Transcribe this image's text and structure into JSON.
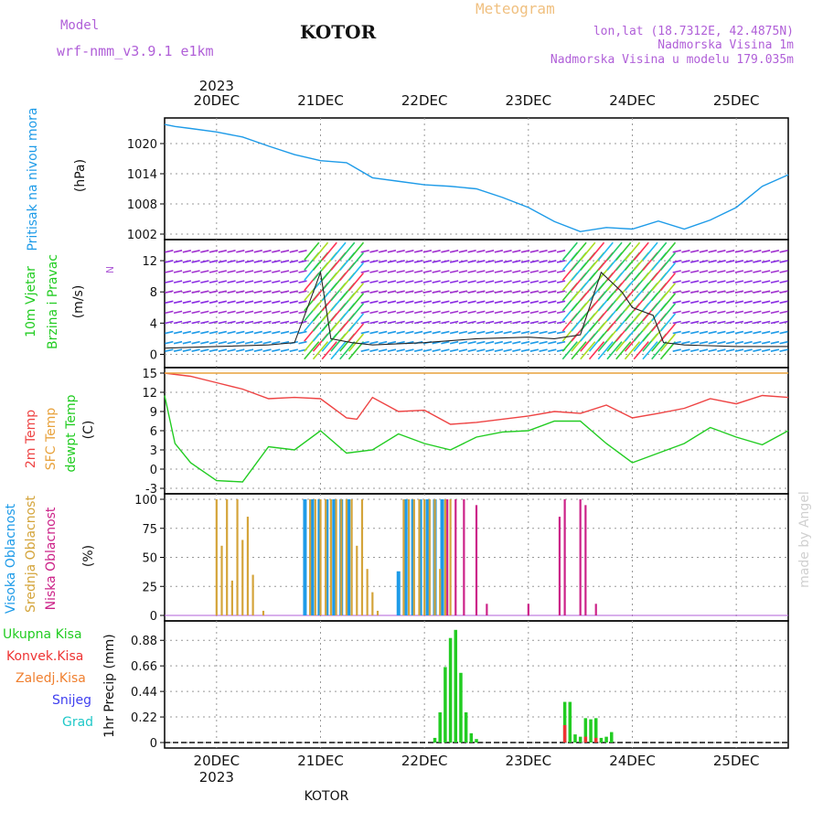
{
  "header": {
    "model_label": "Model",
    "model_name": "wrf-nmm_v3.9.1 e1km",
    "station": "KOTOR",
    "meteogram": "Meteogram",
    "lonlat": "lon,lat (18.7312E, 42.4875N)",
    "elevation": "Nadmorska Visina 1m",
    "model_elevation": "Nadmorska Visina u modelu 179.035m",
    "year": "2023",
    "footer_station": "KOTOR",
    "credit": "made by Angel"
  },
  "colors": {
    "pressure": "#1e9be8",
    "temp2m": "#ee4444",
    "sfc": "#e8a23c",
    "dewpt": "#22cc22",
    "high_cloud": "#1e9be8",
    "mid_cloud": "#d4a43a",
    "low_cloud": "#cc2288",
    "total_precip": "#22cc22",
    "conv_precip": "#ee3333"
  },
  "x_axis": {
    "day_labels": [
      "20DEC",
      "21DEC",
      "22DEC",
      "23DEC",
      "24DEC",
      "25DEC"
    ],
    "start": "2023-12-19 12:00",
    "end": "2023-12-25 12:00"
  },
  "chart_data": [
    {
      "type": "line",
      "name": "pressure",
      "ylabel_1": "Pritisak na nivou mora",
      "ylabel_2": "(hPa)",
      "ylim": [
        1002,
        1024
      ],
      "yticks": [
        1002,
        1008,
        1014,
        1020
      ],
      "x": [
        0,
        0.1,
        0.25,
        0.5,
        0.75,
        1.0,
        1.25,
        1.5,
        1.75,
        2.0,
        2.25,
        2.5,
        2.75,
        3.0,
        3.25,
        3.5,
        3.75,
        4.0,
        4.25,
        4.5,
        4.75,
        5.0,
        5.25,
        5.5,
        5.75,
        6.0
      ],
      "y": [
        1023.8,
        1023.4,
        1023,
        1022.3,
        1021.3,
        1019.5,
        1017.8,
        1016.6,
        1016.2,
        1013.2,
        1012.5,
        1011.8,
        1011.5,
        1011,
        1009.3,
        1007.3,
        1004.5,
        1002.5,
        1003.3,
        1003,
        1004.6,
        1003,
        1004.8,
        1007.3,
        1011.5,
        1013.8
      ]
    },
    {
      "type": "line",
      "name": "wind",
      "ylabel_1": "10m Vjetar",
      "ylabel_2": "Brzina i Pravac",
      "ylabel_3": "(m/s)",
      "compass": "N",
      "ylim": [
        -1,
        14
      ],
      "yticks": [
        0,
        4,
        8,
        12
      ],
      "x": [
        0,
        0.5,
        1.0,
        1.25,
        1.5,
        1.6,
        1.8,
        2.0,
        2.5,
        3.0,
        3.5,
        3.75,
        4.0,
        4.2,
        4.4,
        4.5,
        4.7,
        4.8,
        5.0,
        5.5,
        6.0
      ],
      "y": [
        0.8,
        1.0,
        1.2,
        1.5,
        10.5,
        2.0,
        1.5,
        1.2,
        1.5,
        2.0,
        2.2,
        2.0,
        2.5,
        10.5,
        8.0,
        6.0,
        5.0,
        1.5,
        1.2,
        1.0,
        1.0
      ]
    },
    {
      "type": "line",
      "name": "temperature",
      "ylabel_1": "2m Temp",
      "ylabel_2": "SFC Temp",
      "ylabel_3": "dewpt Temp",
      "ylabel_4": "(C)",
      "ylim": [
        -3,
        15
      ],
      "yticks": [
        -3,
        0,
        3,
        6,
        9,
        12,
        15
      ],
      "series": [
        {
          "name": "2m Temp",
          "x": [
            0,
            0.25,
            0.5,
            0.75,
            1.0,
            1.25,
            1.5,
            1.75,
            1.85,
            2.0,
            2.25,
            2.5,
            2.75,
            3.0,
            3.25,
            3.5,
            3.75,
            4.0,
            4.25,
            4.5,
            4.75,
            5.0,
            5.25,
            5.5,
            5.75,
            6.0
          ],
          "y": [
            15,
            14.5,
            13.5,
            12.5,
            11.0,
            11.2,
            11.0,
            8.0,
            7.8,
            11.2,
            9.0,
            9.2,
            7.0,
            7.3,
            7.8,
            8.3,
            9.0,
            8.7,
            10.0,
            8.0,
            8.7,
            9.5,
            11.0,
            10.2,
            11.5,
            11.2
          ]
        },
        {
          "name": "SFC Temp",
          "x": [
            0,
            6.0
          ],
          "y": [
            15,
            15
          ]
        },
        {
          "name": "dewpt Temp",
          "x": [
            0,
            0.1,
            0.25,
            0.5,
            0.75,
            1.0,
            1.25,
            1.5,
            1.75,
            2.0,
            2.25,
            2.5,
            2.75,
            3.0,
            3.25,
            3.5,
            3.75,
            4.0,
            4.25,
            4.5,
            4.75,
            5.0,
            5.25,
            5.5,
            5.75,
            6.0
          ],
          "y": [
            11.5,
            4.0,
            1.0,
            -1.8,
            -2.0,
            3.5,
            3.0,
            6.0,
            2.5,
            3.0,
            5.5,
            4.0,
            3.0,
            5.0,
            5.8,
            6.0,
            7.5,
            7.5,
            4.0,
            1.0,
            2.5,
            4.0,
            6.5,
            5.0,
            3.8,
            6.0
          ]
        }
      ]
    },
    {
      "type": "bar",
      "name": "clouds",
      "ylabel_1": "Visoka Oblacnost",
      "ylabel_2": "Srednja Oblacnost",
      "ylabel_3": "Niska Oblacnost",
      "ylabel_4": "(%)",
      "ylim": [
        0,
        100
      ],
      "yticks": [
        0,
        25,
        50,
        75,
        100
      ],
      "series": [
        {
          "name": "Visoka Oblacnost",
          "x": [
            1.35,
            1.42,
            1.49,
            1.56,
            1.63,
            1.7,
            1.77,
            2.25,
            2.32,
            2.39,
            2.46,
            2.53,
            2.6,
            2.67
          ],
          "y": [
            100,
            100,
            100,
            100,
            100,
            100,
            100,
            38,
            100,
            100,
            100,
            100,
            100,
            100
          ]
        },
        {
          "name": "Srednja Oblacnost",
          "x": [
            0.5,
            0.55,
            0.6,
            0.65,
            0.7,
            0.75,
            0.8,
            0.85,
            0.95,
            1.4,
            1.45,
            1.5,
            1.55,
            1.6,
            1.65,
            1.7,
            1.75,
            1.8,
            1.85,
            1.9,
            1.95,
            2.0,
            2.05,
            2.3,
            2.35,
            2.4,
            2.45,
            2.5,
            2.55,
            2.6,
            2.65,
            2.7,
            2.75
          ],
          "y": [
            100,
            60,
            100,
            30,
            100,
            65,
            85,
            35,
            4,
            100,
            100,
            100,
            100,
            100,
            100,
            100,
            100,
            100,
            60,
            100,
            40,
            20,
            4,
            100,
            100,
            100,
            100,
            100,
            100,
            100,
            40,
            100,
            100
          ]
        },
        {
          "name": "Niska Oblacnost",
          "x": [
            2.72,
            2.8,
            2.88,
            3.0,
            3.1,
            3.5,
            3.8,
            3.85,
            4.0,
            4.05,
            4.15
          ],
          "y": [
            100,
            100,
            100,
            95,
            10,
            10,
            85,
            100,
            100,
            95,
            10
          ]
        }
      ]
    },
    {
      "type": "bar",
      "name": "precipitation",
      "legend": [
        "Ukupna Kisa",
        "Konvek.Kisa",
        "Zaledj.Kisa",
        "Snijeg",
        "Grad"
      ],
      "ylabel_1": "1hr Precip (mm)",
      "ylim": [
        0,
        1.0
      ],
      "yticks": [
        0,
        0.22,
        0.44,
        0.66,
        0.88
      ],
      "series": [
        {
          "name": "Ukupna Kisa",
          "x": [
            2.6,
            2.65,
            2.7,
            2.75,
            2.8,
            2.85,
            2.9,
            2.95,
            3.0,
            3.85,
            3.9,
            3.95,
            4.0,
            4.05,
            4.1,
            4.15,
            4.2,
            4.25,
            4.3
          ],
          "y": [
            0.04,
            0.26,
            0.65,
            0.9,
            0.97,
            0.6,
            0.26,
            0.08,
            0.03,
            0.35,
            0.35,
            0.07,
            0.05,
            0.21,
            0.2,
            0.21,
            0.04,
            0.05,
            0.09
          ]
        },
        {
          "name": "Konvek.Kisa",
          "x": [
            3.85,
            4.05,
            4.15
          ],
          "y": [
            0.15,
            0.05,
            0.04
          ]
        }
      ]
    }
  ]
}
